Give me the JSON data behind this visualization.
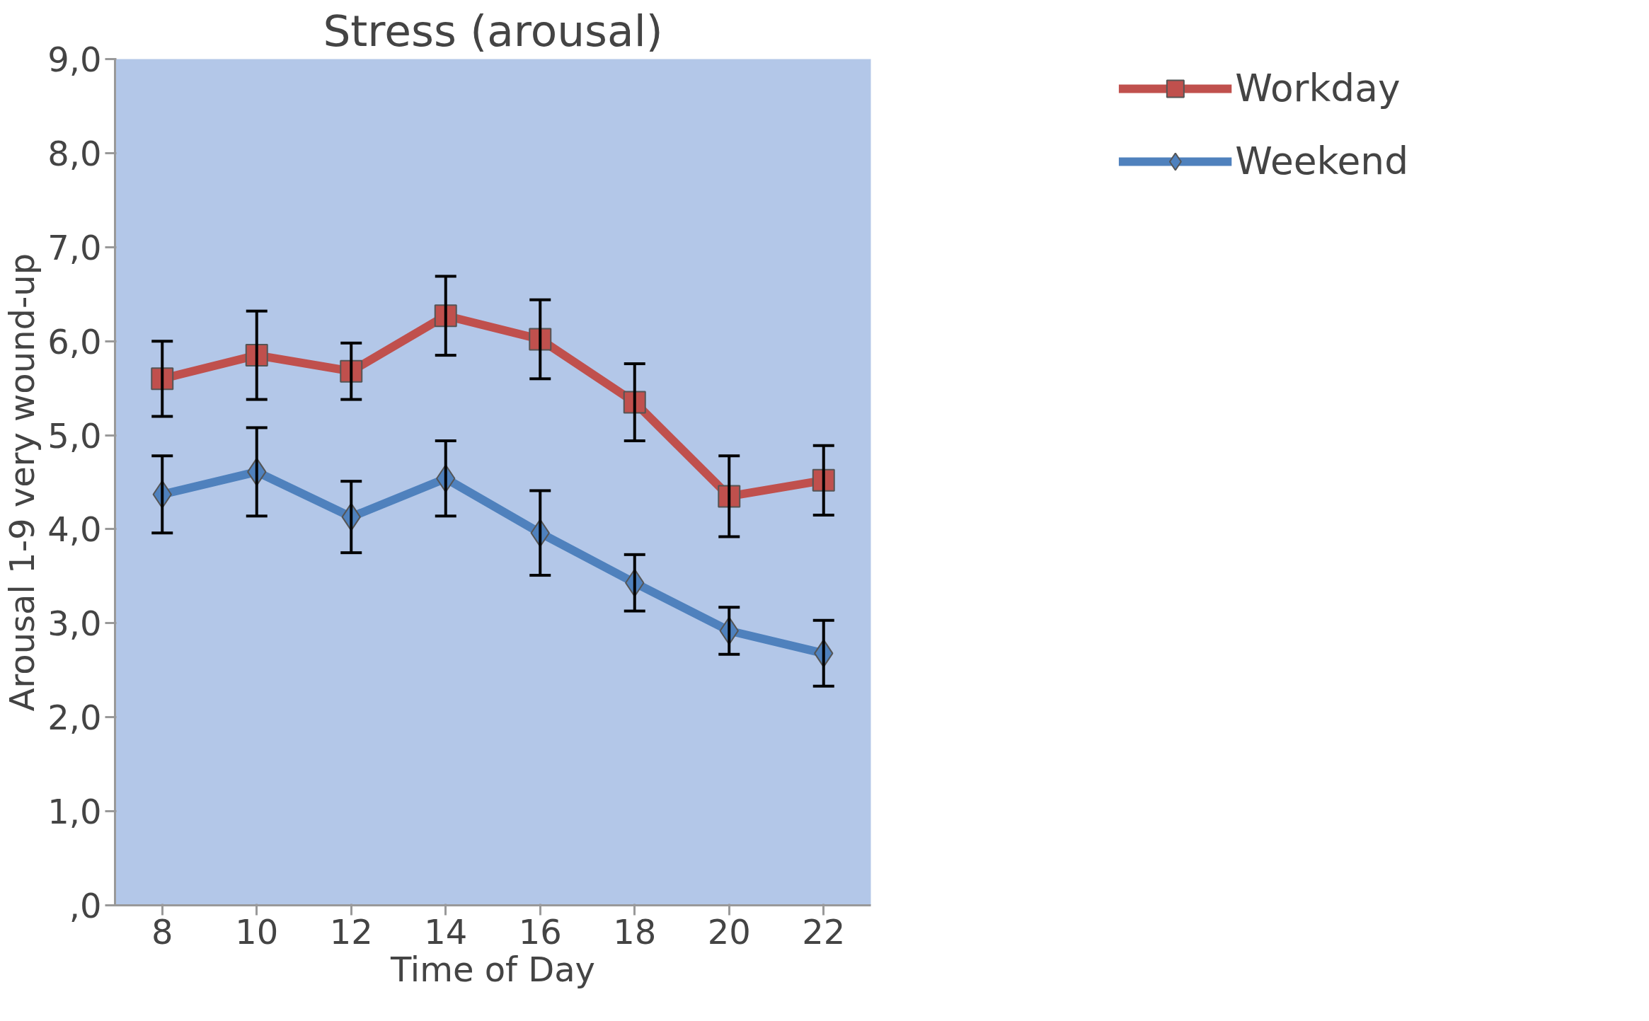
{
  "chart_data": {
    "type": "line",
    "title": "Stress (arousal)",
    "xlabel": "Time of Day",
    "ylabel": "Arousal 1-9 very wound-up",
    "categories": [
      "8",
      "10",
      "12",
      "14",
      "16",
      "18",
      "20",
      "22"
    ],
    "series": [
      {
        "name": "Workday",
        "color": "#c0504d",
        "marker": "square",
        "values": [
          5.6,
          5.85,
          5.68,
          6.27,
          6.02,
          5.35,
          4.35,
          4.52
        ],
        "errors": [
          0.4,
          0.47,
          0.3,
          0.42,
          0.42,
          0.41,
          0.43,
          0.37
        ]
      },
      {
        "name": "Weekend",
        "color": "#4f81bd",
        "marker": "diamond",
        "values": [
          4.37,
          4.61,
          4.13,
          4.54,
          3.96,
          3.43,
          2.92,
          2.68
        ],
        "errors": [
          0.41,
          0.47,
          0.38,
          0.4,
          0.45,
          0.3,
          0.25,
          0.35
        ]
      }
    ],
    "ylim": [
      0,
      9
    ],
    "yticks": [
      {
        "value": 0,
        "label": ",0"
      },
      {
        "value": 1,
        "label": "1,0"
      },
      {
        "value": 2,
        "label": "2,0"
      },
      {
        "value": 3,
        "label": "3,0"
      },
      {
        "value": 4,
        "label": "4,0"
      },
      {
        "value": 5,
        "label": "5,0"
      },
      {
        "value": 6,
        "label": "6,0"
      },
      {
        "value": 7,
        "label": "7,0"
      },
      {
        "value": 8,
        "label": "8,0"
      },
      {
        "value": 9,
        "label": "9,0"
      }
    ],
    "grid": false,
    "legend": "right",
    "line_style": "solid"
  }
}
